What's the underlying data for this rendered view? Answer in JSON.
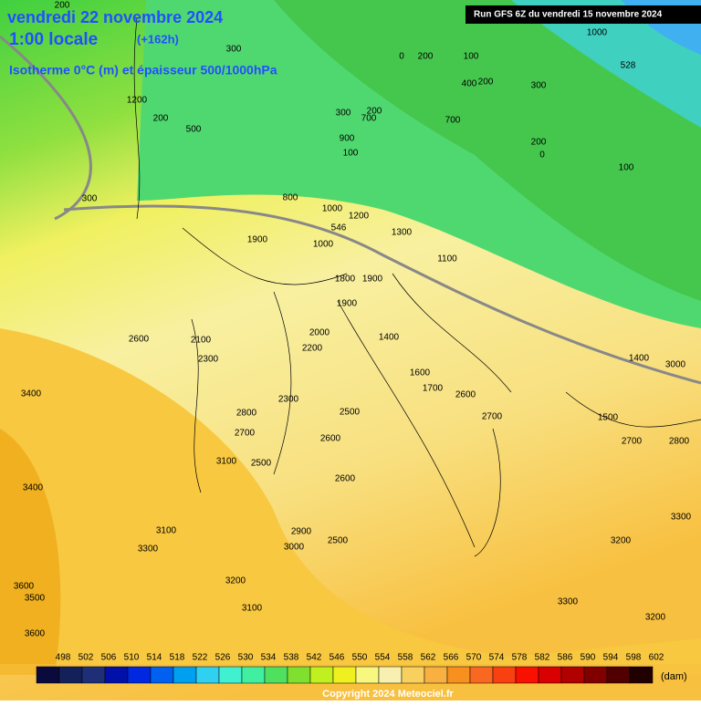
{
  "header": {
    "title": "vendredi 22 novembre 2024",
    "time": "1:00 locale",
    "offset": "(+162h)",
    "subtitle": "Isotherme 0°C (m) et épaisseur 500/1000hPa",
    "run": "Run GFS 6Z du vendredi 15 novembre 2024"
  },
  "contour_labels": [
    "528",
    "200",
    "300",
    "0",
    "200",
    "100",
    "1000",
    "400",
    "200",
    "300",
    "1200",
    "200",
    "500",
    "300",
    "200",
    "700",
    "900",
    "100",
    "700",
    "200",
    "0",
    "100",
    "300",
    "800",
    "1000",
    "1200",
    "546",
    "1900",
    "1000",
    "1300",
    "1100",
    "1800",
    "1900",
    "1900",
    "2600",
    "2100",
    "2000",
    "2200",
    "2300",
    "1400",
    "1600",
    "2500",
    "2600",
    "2300",
    "2800",
    "2700",
    "2500",
    "2600",
    "3100",
    "2500",
    "2900",
    "3000",
    "3100",
    "3300",
    "3200",
    "3100",
    "3300",
    "3400",
    "3600",
    "3500",
    "3600",
    "1500",
    "2700",
    "2800",
    "2600",
    "1400",
    "1700",
    "3200",
    "3300",
    "3200",
    "3000",
    "2700",
    "3400"
  ],
  "legend": {
    "labels": [
      498,
      502,
      506,
      510,
      514,
      518,
      522,
      526,
      530,
      534,
      538,
      542,
      546,
      550,
      554,
      558,
      562,
      566,
      570,
      574,
      578,
      582,
      586,
      590,
      594,
      598,
      602
    ],
    "unit": "(dam)",
    "colors": [
      "#0a0a3c",
      "#14205a",
      "#1e2f78",
      "#0010a8",
      "#0028e0",
      "#0060f0",
      "#00a0f0",
      "#30d0f0",
      "#40f0d0",
      "#40f0a0",
      "#50e060",
      "#80e030",
      "#c0f020",
      "#f0f020",
      "#f8f880",
      "#f8f0b0",
      "#f8d060",
      "#f8b040",
      "#f89020",
      "#f86820",
      "#f84010",
      "#f81000",
      "#d80000",
      "#b00000",
      "#800000",
      "#500000",
      "#200000"
    ]
  },
  "footer": "Copyright 2024 Meteociel.fr"
}
